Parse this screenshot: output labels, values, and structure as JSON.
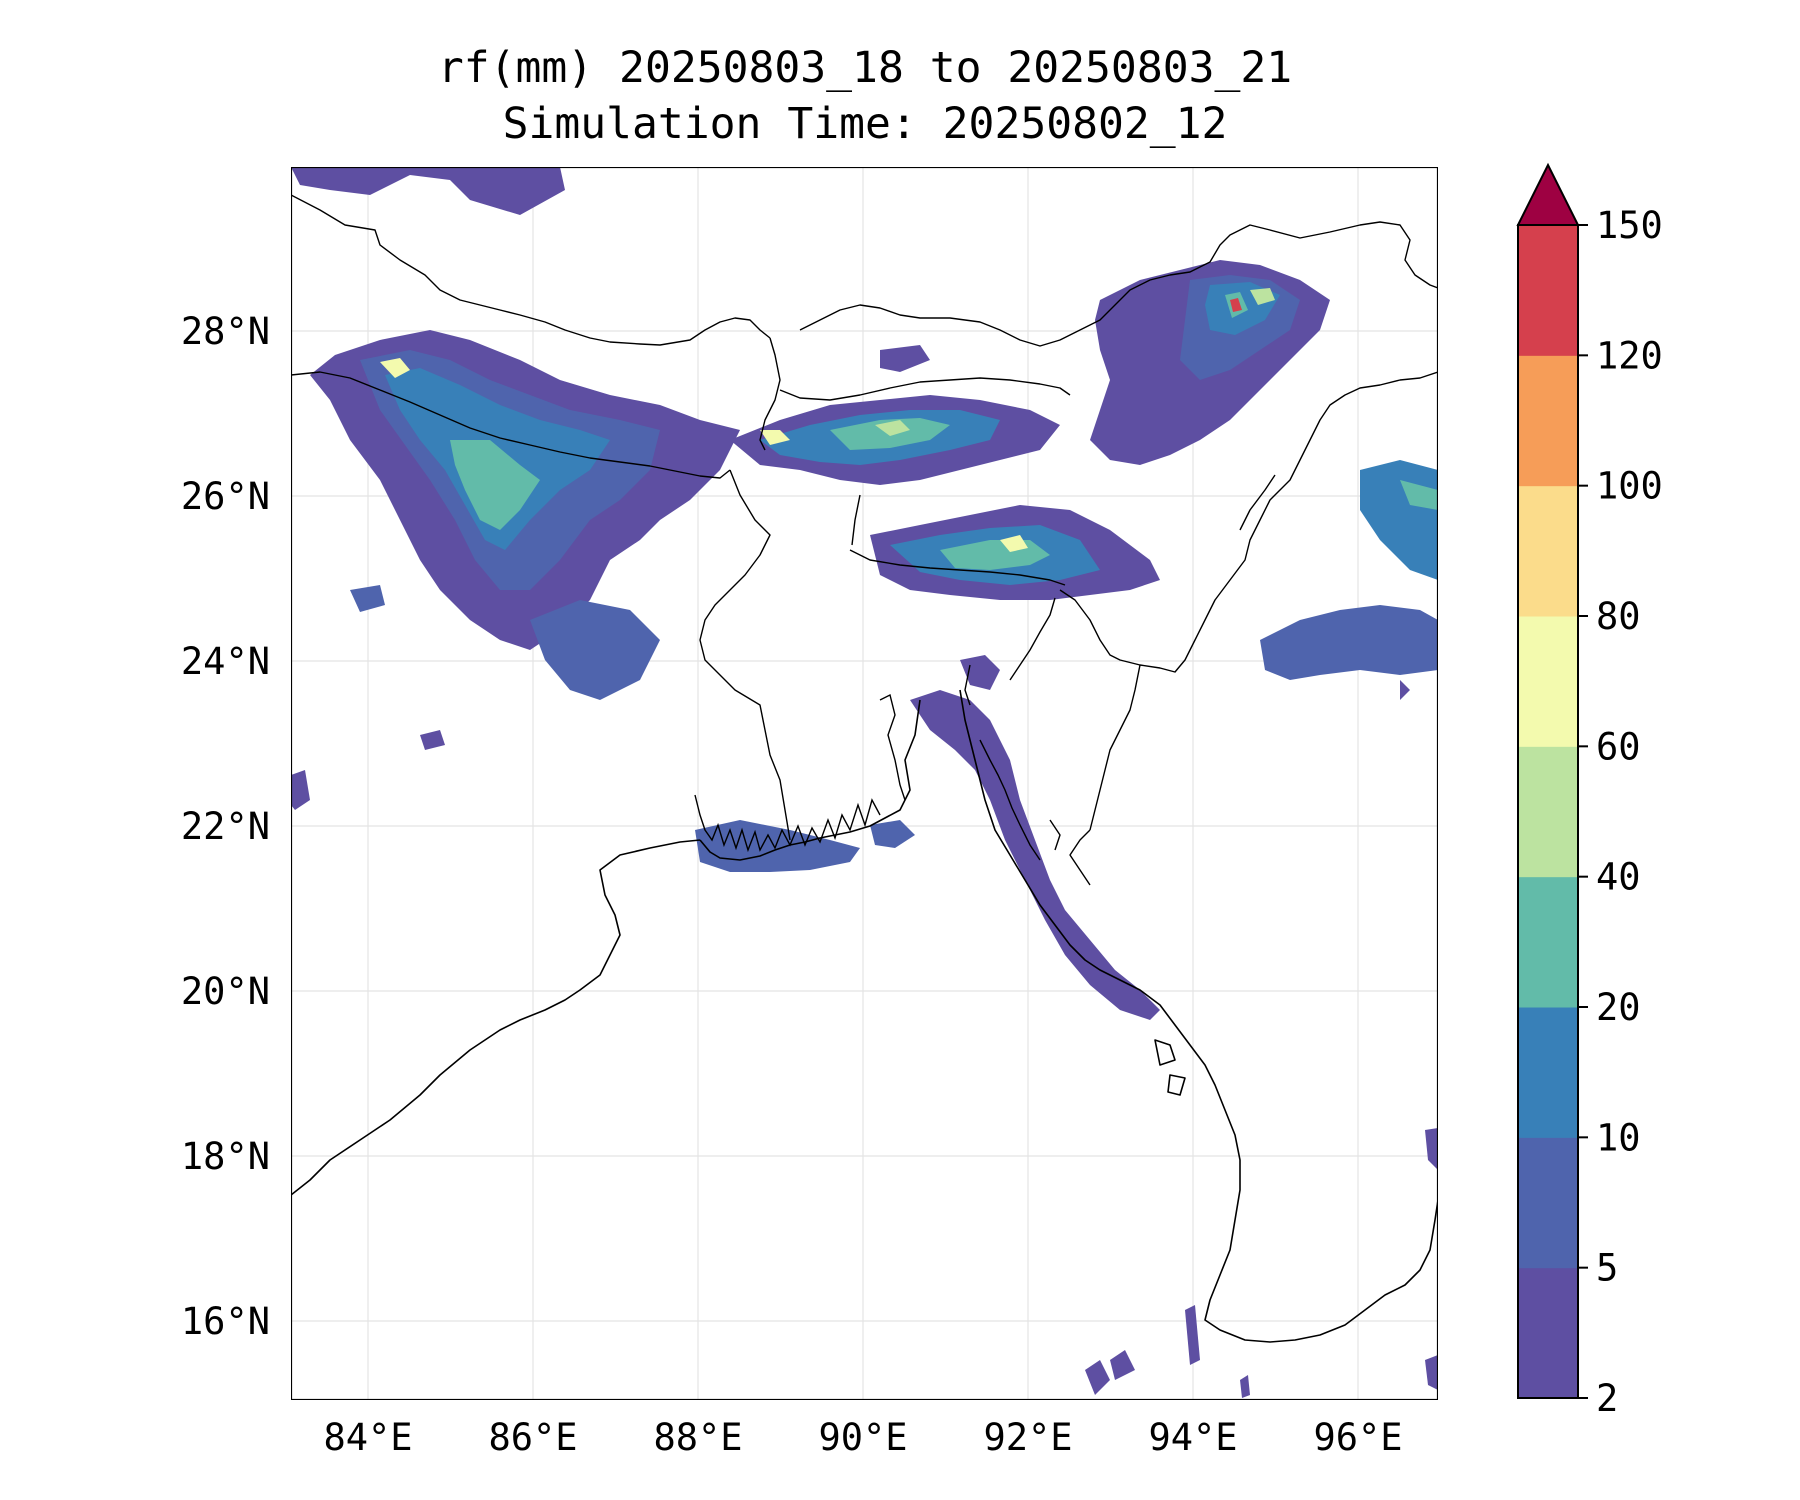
{
  "title": {
    "line1": "rf(mm) 20250803_18 to 20250803_21",
    "line2": "Simulation Time: 20250802_12"
  },
  "axes": {
    "x_ticks": [
      "84°E",
      "86°E",
      "88°E",
      "90°E",
      "92°E",
      "94°E",
      "96°E"
    ],
    "y_ticks": [
      "16°N",
      "18°N",
      "20°N",
      "22°N",
      "24°N",
      "26°N",
      "28°N"
    ],
    "lon_range": [
      83.1,
      97.0
    ],
    "lat_range": [
      15.1,
      30.0
    ]
  },
  "colorbar": {
    "labels": [
      "2",
      "5",
      "10",
      "20",
      "40",
      "60",
      "80",
      "100",
      "120",
      "150"
    ],
    "colors": [
      "#5e4fa2",
      "#4f64ad",
      "#3880b8",
      "#62bba9",
      "#bce3a0",
      "#f3faae",
      "#fbdc8b",
      "#f69d58",
      "#d5404d",
      "#9e0142"
    ],
    "extend": "max"
  },
  "map": {
    "features": [
      "coastlines",
      "country-borders",
      "gridlines"
    ],
    "rain_colors": {
      "light": "#5e4fa2",
      "moderate": "#4f64ad",
      "mid": "#3880b8",
      "heavy": "#62bba9",
      "very_heavy": "#bce3a0",
      "extreme": "#f3faae",
      "peak": "#d5404d"
    }
  }
}
